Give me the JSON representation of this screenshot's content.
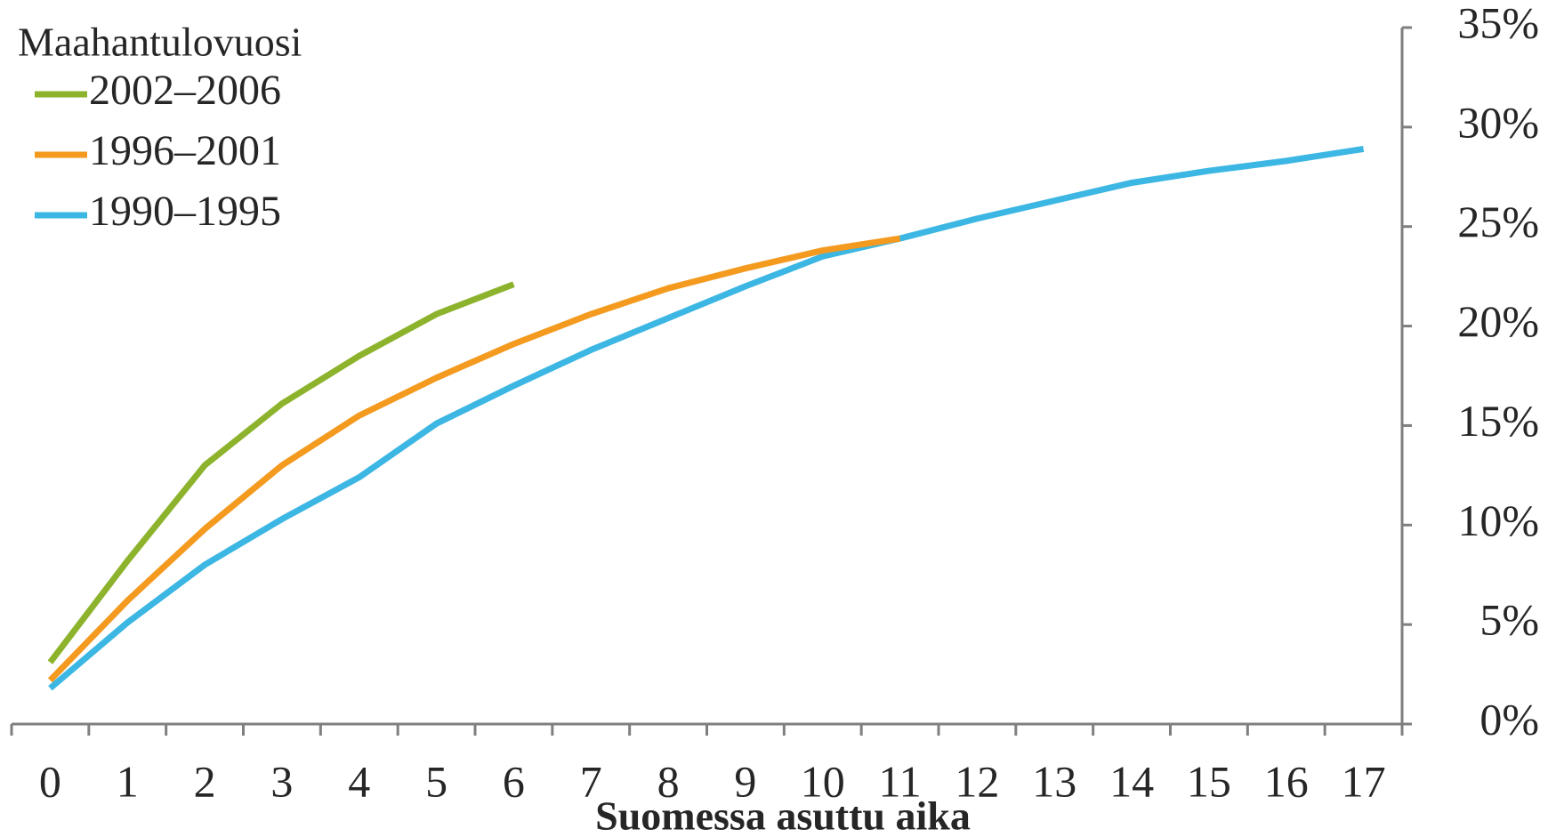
{
  "chart_data": {
    "type": "line",
    "x_label": "Suomessa asuttu aika",
    "legend_title": "Maahantulovuosi",
    "legend": "top-left",
    "categories": [
      "0",
      "1",
      "2",
      "3",
      "4",
      "5",
      "6",
      "7",
      "8",
      "9",
      "10",
      "11",
      "12",
      "13",
      "14",
      "15",
      "16",
      "17"
    ],
    "series": [
      {
        "name": "2002–2006",
        "color": "#8db32d",
        "values": [
          3.1,
          8.2,
          13.0,
          16.1,
          18.5,
          20.6,
          22.1,
          null,
          null,
          null,
          null,
          null,
          null,
          null,
          null,
          null,
          null,
          null
        ]
      },
      {
        "name": "1996–2001",
        "color": "#f39a1f",
        "values": [
          2.2,
          6.2,
          9.8,
          13.0,
          15.5,
          17.4,
          19.1,
          20.6,
          21.9,
          22.9,
          23.8,
          24.4,
          null,
          null,
          null,
          null,
          null,
          null
        ]
      },
      {
        "name": "1990–1995",
        "color": "#3cb6e3",
        "values": [
          1.8,
          5.1,
          8.0,
          10.3,
          12.4,
          15.1,
          17.0,
          18.8,
          20.4,
          22.0,
          23.5,
          24.4,
          25.4,
          26.3,
          27.2,
          27.8,
          28.3,
          28.9
        ]
      }
    ],
    "ylim": [
      0,
      35
    ],
    "yticks": [
      {
        "value": 0,
        "label": "0%"
      },
      {
        "value": 5,
        "label": "5%"
      },
      {
        "value": 10,
        "label": "10%"
      },
      {
        "value": 15,
        "label": "15%"
      },
      {
        "value": 20,
        "label": "20%"
      },
      {
        "value": 25,
        "label": "25%"
      },
      {
        "value": 30,
        "label": "30%"
      },
      {
        "value": 35,
        "label": "35%"
      }
    ]
  }
}
